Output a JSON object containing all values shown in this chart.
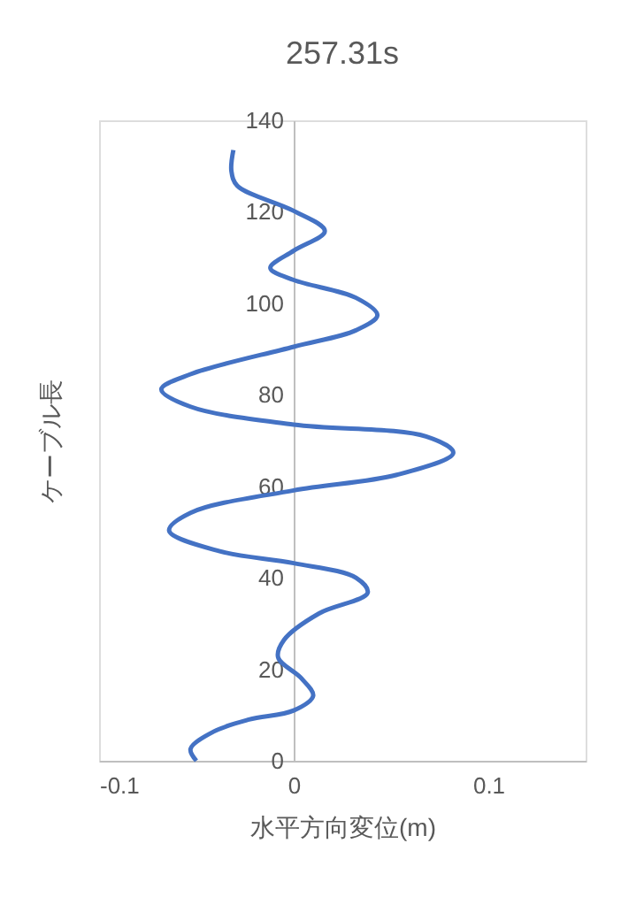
{
  "chart_data": {
    "type": "line",
    "title": "257.31s",
    "xlabel": "水平方向変位(m)",
    "ylabel": "ケーブル長",
    "series": [
      {
        "color": "#4472c4",
        "x": [
          -0.05,
          -0.053,
          -0.041,
          -0.023,
          0,
          0.01,
          0.004,
          -0.008,
          -0.005,
          0.013,
          0.038,
          0.032,
          0,
          -0.038,
          -0.064,
          -0.053,
          0,
          0.053,
          0.082,
          0.068,
          0,
          -0.053,
          -0.068,
          -0.053,
          0,
          0.032,
          0.043,
          0.032,
          0,
          -0.012,
          0,
          0.016,
          0,
          -0.029,
          -0.032,
          -0.031
        ],
        "values": [
          0,
          2.6,
          6.4,
          9.0,
          11,
          14.2,
          18,
          22.6,
          26.4,
          32.2,
          36.7,
          40,
          43.2,
          45.8,
          50.3,
          54.2,
          59.1,
          62.5,
          67.3,
          70.9,
          73.5,
          77.4,
          81.2,
          84.5,
          90.5,
          94.1,
          97.4,
          101.2,
          105.1,
          107.7,
          111.5,
          115.8,
          120.2,
          125.7,
          128.9,
          133.5
        ]
      }
    ],
    "xlim": [
      -0.1,
      0.15
    ],
    "ylim": [
      0,
      140
    ],
    "xticks": [
      -0.1,
      0,
      0.1
    ],
    "yticks": [
      0,
      20,
      40,
      60,
      80,
      100,
      120,
      140
    ],
    "grid": false,
    "legend": false
  }
}
